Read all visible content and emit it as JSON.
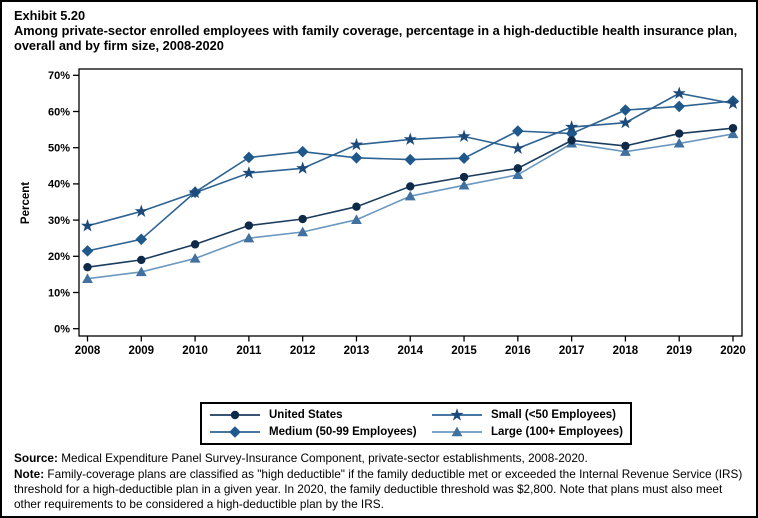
{
  "header": {
    "exhibit": "Exhibit 5.20",
    "title": "Among private-sector enrolled employees with family coverage, percentage in a high-deductible health insurance plan, overall and by firm size, 2008-2020"
  },
  "chart_data": {
    "type": "line",
    "title": "",
    "xlabel": "",
    "ylabel": "Percent",
    "ylim": [
      0,
      70
    ],
    "ytick_interval": 10,
    "ytick_labels": [
      "0%",
      "10%",
      "20%",
      "30%",
      "40%",
      "50%",
      "60%",
      "70%"
    ],
    "x": [
      2008,
      2009,
      2010,
      2011,
      2012,
      2013,
      2014,
      2015,
      2016,
      2017,
      2018,
      2019,
      2020
    ],
    "xtick_labels": [
      "2008",
      "2009",
      "2010",
      "2011",
      "2012",
      "2013",
      "2014",
      "2015",
      "2016",
      "2017",
      "2018",
      "2019",
      "2020"
    ],
    "grid": false,
    "legend_position": "bottom",
    "series": [
      {
        "name": "United States",
        "marker": "circle",
        "marker_color": "#0f2948",
        "line_color": "#1c3c5e",
        "values": [
          17.0,
          19.0,
          23.3,
          28.5,
          30.3,
          33.7,
          39.3,
          41.9,
          44.3,
          52.0,
          50.5,
          53.9,
          55.4
        ]
      },
      {
        "name": "Small (<50 Employees)",
        "marker": "star",
        "marker_color": "#1d4a7a",
        "line_color": "#2d6292",
        "values": [
          28.4,
          32.4,
          37.6,
          43.0,
          44.3,
          50.8,
          52.3,
          53.1,
          49.8,
          55.7,
          56.9,
          65.0,
          62.2
        ]
      },
      {
        "name": "Medium (50-99 Employees)",
        "marker": "diamond",
        "marker_color": "#1f598c",
        "line_color": "#2d6292",
        "values": [
          21.5,
          24.7,
          37.7,
          47.3,
          48.9,
          47.2,
          46.7,
          47.1,
          54.6,
          53.9,
          60.4,
          61.4,
          62.9
        ]
      },
      {
        "name": "Large (100+ Employees)",
        "marker": "triangle",
        "marker_color": "#41719f",
        "line_color": "#6b97bf",
        "values": [
          13.8,
          15.7,
          19.4,
          25.0,
          26.7,
          30.1,
          36.6,
          39.6,
          42.5,
          51.2,
          48.9,
          51.2,
          53.8
        ]
      }
    ]
  },
  "footer": {
    "source_label": "Source:",
    "source_text": " Medical Expenditure Panel Survey-Insurance Component, private-sector establishments, 2008-2020.",
    "note_label": "Note:",
    "note_text": " Family-coverage plans are classified as \"high deductible\" if the family deductible met or exceeded the Internal Revenue Service (IRS) threshold for a high-deductible plan in a given year. In 2020, the family deductible threshold was $2,800. Note that plans must also meet other requirements to be considered a high-deductible plan by the IRS."
  }
}
